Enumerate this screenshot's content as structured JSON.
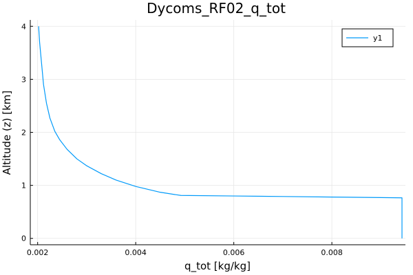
{
  "chart_data": {
    "type": "line",
    "title": "Dycoms_RF02_q_tot",
    "xlabel": "q_tot [kg/kg]",
    "ylabel": "Altitude (z) [km]",
    "xlim": [
      0.00185,
      0.0095
    ],
    "ylim": [
      -0.12,
      4.12
    ],
    "xticks": [
      {
        "value": 0.002,
        "label": "0.002"
      },
      {
        "value": 0.004,
        "label": "0.004"
      },
      {
        "value": 0.006,
        "label": "0.006"
      },
      {
        "value": 0.008,
        "label": "0.008"
      }
    ],
    "yticks": [
      {
        "value": 0,
        "label": "0"
      },
      {
        "value": 1,
        "label": "1"
      },
      {
        "value": 2,
        "label": "2"
      },
      {
        "value": 3,
        "label": "3"
      },
      {
        "value": 4,
        "label": "4"
      }
    ],
    "grid": true,
    "legend": {
      "position": "top-right"
    },
    "series": [
      {
        "name": "y1",
        "color": "#009AFA",
        "points": [
          [
            0.00943,
            0.0
          ],
          [
            0.00943,
            0.4
          ],
          [
            0.00943,
            0.765
          ],
          [
            0.009,
            0.77
          ],
          [
            0.008,
            0.78
          ],
          [
            0.007,
            0.79
          ],
          [
            0.006,
            0.8
          ],
          [
            0.00492,
            0.81
          ],
          [
            0.0045,
            0.87
          ],
          [
            0.004,
            0.98
          ],
          [
            0.0036,
            1.1
          ],
          [
            0.0033,
            1.22
          ],
          [
            0.003,
            1.37
          ],
          [
            0.0028,
            1.5
          ],
          [
            0.0026,
            1.68
          ],
          [
            0.00245,
            1.86
          ],
          [
            0.00235,
            2.02
          ],
          [
            0.00225,
            2.27
          ],
          [
            0.00218,
            2.55
          ],
          [
            0.00212,
            2.9
          ],
          [
            0.00208,
            3.3
          ],
          [
            0.00204,
            3.7
          ],
          [
            0.00202,
            4.0
          ]
        ]
      }
    ]
  }
}
